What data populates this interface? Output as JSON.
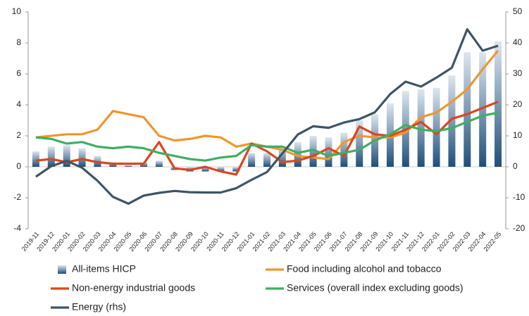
{
  "chart_data": {
    "type": "combo",
    "categories": [
      "2019-11",
      "2019-12",
      "2020-01",
      "2020-02",
      "2020-03",
      "2020-04",
      "2020-05",
      "2020-06",
      "2020-07",
      "2020-08",
      "2020-09",
      "2020-10",
      "2020-11",
      "2020-12",
      "2021-01",
      "2021-02",
      "2021-03",
      "2021-04",
      "2021-05",
      "2021-06",
      "2021-07",
      "2021-08",
      "2021-09",
      "2021-10",
      "2021-11",
      "2021-12",
      "2022-01",
      "2022-02",
      "2022-03",
      "2022-04",
      "2022-05"
    ],
    "series": [
      {
        "name": "All-items HICP",
        "type": "bar",
        "color": "#1f4e79",
        "values": [
          1.0,
          1.3,
          1.4,
          1.2,
          0.7,
          0.3,
          0.1,
          0.3,
          0.4,
          -0.2,
          -0.3,
          -0.3,
          -0.3,
          -0.3,
          0.9,
          0.9,
          1.3,
          1.6,
          2.0,
          1.9,
          2.2,
          3.0,
          3.4,
          4.1,
          4.9,
          5.0,
          5.1,
          5.9,
          7.4,
          7.4,
          8.1
        ]
      },
      {
        "name": "Food including alcohol and tobacco",
        "type": "line",
        "color": "#f0962e",
        "values": [
          1.9,
          2.0,
          2.1,
          2.1,
          2.4,
          3.6,
          3.4,
          3.2,
          2.0,
          1.7,
          1.8,
          2.0,
          1.9,
          1.3,
          1.5,
          1.3,
          1.1,
          0.7,
          0.6,
          0.5,
          1.6,
          2.0,
          1.9,
          1.9,
          2.2,
          3.2,
          3.5,
          4.2,
          5.0,
          6.3,
          7.5
        ]
      },
      {
        "name": "Non-energy industrial goods",
        "type": "line",
        "color": "#d9471e",
        "values": [
          0.4,
          0.5,
          0.3,
          0.5,
          0.3,
          0.2,
          0.2,
          0.2,
          1.6,
          -0.1,
          -0.2,
          0.0,
          -0.3,
          -0.5,
          1.5,
          1.0,
          0.3,
          0.4,
          0.7,
          1.2,
          0.7,
          2.6,
          2.1,
          2.0,
          2.4,
          2.9,
          2.1,
          3.1,
          3.4,
          3.8,
          4.2
        ]
      },
      {
        "name": "Services (overall index excluding goods)",
        "type": "line",
        "color": "#3fae63",
        "values": [
          1.9,
          1.8,
          1.5,
          1.6,
          1.3,
          1.2,
          1.3,
          1.2,
          0.9,
          0.7,
          0.5,
          0.4,
          0.6,
          0.7,
          1.4,
          1.3,
          1.3,
          0.9,
          1.1,
          0.7,
          0.9,
          1.1,
          1.7,
          2.1,
          2.7,
          2.4,
          2.3,
          2.5,
          2.9,
          3.3,
          3.5
        ]
      },
      {
        "name": "Energy (rhs)",
        "type": "line",
        "axis": "y2",
        "color": "#3d5566",
        "values": [
          -3.2,
          0.2,
          1.9,
          -0.3,
          -4.5,
          -9.7,
          -11.9,
          -9.3,
          -8.4,
          -7.8,
          -8.2,
          -8.3,
          -8.3,
          -6.9,
          -4.2,
          -1.7,
          4.3,
          10.4,
          13.1,
          12.6,
          14.3,
          15.4,
          17.6,
          23.5,
          27.5,
          25.9,
          28.8,
          32.0,
          44.4,
          37.5,
          39.1
        ]
      }
    ],
    "ylim": [
      -4,
      10
    ],
    "yticks": [
      -4,
      -2,
      0,
      2,
      4,
      6,
      8,
      10
    ],
    "y2lim": [
      -20,
      50
    ],
    "y2ticks": [
      -20,
      -10,
      0,
      10,
      20,
      30,
      40,
      50
    ],
    "grid": false,
    "legend": "bottom"
  }
}
